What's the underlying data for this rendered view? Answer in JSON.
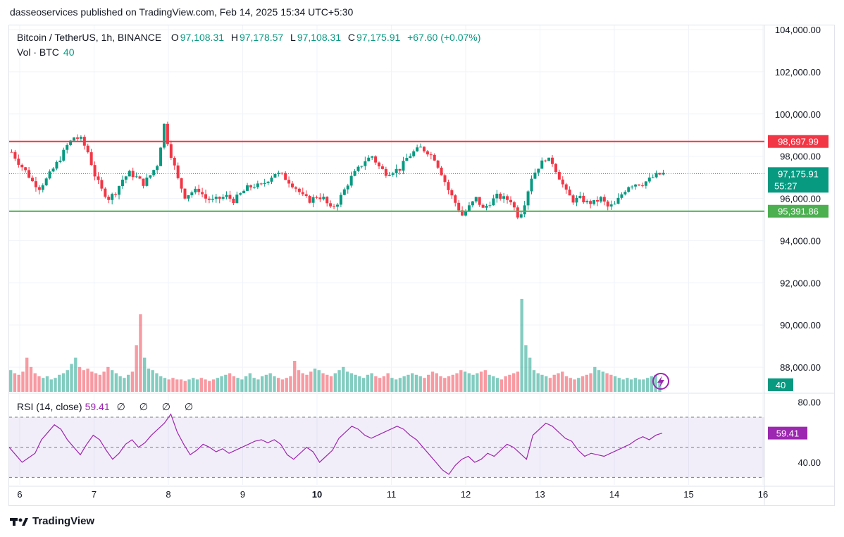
{
  "header": {
    "published": "dasseoservices published on TradingView.com, Feb 14, 2025 15:34 UTC+5:30"
  },
  "legend": {
    "symbol": "Bitcoin / TetherUS, 1h, BINANCE",
    "o_label": "O",
    "o": "97,108.31",
    "h_label": "H",
    "h": "97,178.57",
    "l_label": "L",
    "l": "97,108.31",
    "c_label": "C",
    "c": "97,175.91",
    "change": "+67.60 (+0.07%)"
  },
  "volume_legend": {
    "label": "Vol · BTC",
    "value": "40"
  },
  "rsi_legend": {
    "label": "RSI (14, close)",
    "value": "59.41",
    "nulls": "∅ ∅ ∅ ∅"
  },
  "footer": {
    "brand": "TradingView"
  },
  "colors": {
    "up": "#089981",
    "down": "#f23645",
    "resistance": "#f23645",
    "support": "#4caf50",
    "rsi": "#9c27b0",
    "grid": "#f0f3fa"
  },
  "chart_data": [
    {
      "type": "candlestick",
      "title": "Bitcoin / TetherUS, 1h, BINANCE",
      "x_ticks": [
        "6",
        "7",
        "8",
        "9",
        "10",
        "11",
        "12",
        "13",
        "14",
        "15",
        "16"
      ],
      "y_ticks": [
        "104,000.00",
        "102,000.00",
        "100,000.00",
        "98,000.00",
        "96,000.00",
        "94,000.00",
        "92,000.00",
        "90,000.00",
        "88,000.00"
      ],
      "ylim": [
        86800,
        104200
      ],
      "horizontal_lines": [
        {
          "name": "resistance",
          "value": 98697.99,
          "label": "98,697.99",
          "color": "#f23645"
        },
        {
          "name": "support",
          "value": 95391.86,
          "label": "95,391.86",
          "color": "#4caf50"
        }
      ],
      "last_price": {
        "value": 97175.91,
        "label": "97,175.91",
        "countdown": "55:27"
      },
      "close_path": [
        [
          0,
          98200
        ],
        [
          6,
          97700
        ],
        [
          12,
          97300
        ],
        [
          18,
          96800
        ],
        [
          24,
          96500
        ],
        [
          30,
          96900
        ],
        [
          36,
          97400
        ],
        [
          42,
          97900
        ],
        [
          48,
          98500
        ],
        [
          54,
          98900
        ],
        [
          60,
          98800
        ],
        [
          66,
          98200
        ],
        [
          72,
          97100
        ],
        [
          78,
          96400
        ],
        [
          84,
          96000
        ],
        [
          90,
          96300
        ],
        [
          96,
          96900
        ],
        [
          102,
          97200
        ],
        [
          108,
          97000
        ],
        [
          114,
          96700
        ],
        [
          120,
          97100
        ],
        [
          126,
          97600
        ],
        [
          130,
          98800
        ],
        [
          132,
          99500
        ],
        [
          136,
          98400
        ],
        [
          140,
          97700
        ],
        [
          144,
          96900
        ],
        [
          150,
          96100
        ],
        [
          156,
          96300
        ],
        [
          162,
          96400
        ],
        [
          168,
          96000
        ],
        [
          174,
          95900
        ],
        [
          180,
          96000
        ],
        [
          186,
          96100
        ],
        [
          192,
          95900
        ],
        [
          198,
          96200
        ],
        [
          204,
          96500
        ],
        [
          210,
          96600
        ],
        [
          216,
          96600
        ],
        [
          222,
          96900
        ],
        [
          228,
          97200
        ],
        [
          234,
          97100
        ],
        [
          240,
          96800
        ],
        [
          246,
          96500
        ],
        [
          252,
          96100
        ],
        [
          258,
          95900
        ],
        [
          264,
          96100
        ],
        [
          270,
          96000
        ],
        [
          276,
          95500
        ],
        [
          282,
          95800
        ],
        [
          288,
          96400
        ],
        [
          294,
          97000
        ],
        [
          300,
          97400
        ],
        [
          306,
          97800
        ],
        [
          312,
          98000
        ],
        [
          318,
          97500
        ],
        [
          324,
          97200
        ],
        [
          330,
          97300
        ],
        [
          336,
          97400
        ],
        [
          342,
          97900
        ],
        [
          348,
          98200
        ],
        [
          354,
          98400
        ],
        [
          360,
          98200
        ],
        [
          366,
          97900
        ],
        [
          372,
          97200
        ],
        [
          378,
          96400
        ],
        [
          384,
          95800
        ],
        [
          390,
          95200
        ],
        [
          396,
          95600
        ],
        [
          402,
          96000
        ],
        [
          408,
          95500
        ],
        [
          414,
          95800
        ],
        [
          420,
          96100
        ],
        [
          426,
          96000
        ],
        [
          432,
          95900
        ],
        [
          438,
          95200
        ],
        [
          442,
          95400
        ],
        [
          446,
          96200
        ],
        [
          450,
          97000
        ],
        [
          456,
          97500
        ],
        [
          462,
          97900
        ],
        [
          468,
          97700
        ],
        [
          474,
          97000
        ],
        [
          480,
          96300
        ],
        [
          486,
          95900
        ],
        [
          492,
          96000
        ],
        [
          498,
          95800
        ],
        [
          504,
          95800
        ],
        [
          510,
          96000
        ],
        [
          516,
          95600
        ],
        [
          522,
          95700
        ],
        [
          528,
          96200
        ],
        [
          534,
          96600
        ],
        [
          540,
          96700
        ],
        [
          546,
          96700
        ],
        [
          552,
          96900
        ],
        [
          558,
          97100
        ],
        [
          564,
          97176
        ]
      ],
      "volume": {
        "label": "Vol · BTC",
        "last": "40",
        "bars_note": "relative",
        "values": [
          14,
          12,
          11,
          13,
          22,
          16,
          12,
          10,
          9,
          10,
          8,
          9,
          11,
          12,
          14,
          18,
          22,
          16,
          14,
          15,
          13,
          12,
          11,
          13,
          16,
          14,
          12,
          10,
          9,
          11,
          13,
          30,
          50,
          22,
          15,
          14,
          12,
          10,
          9,
          8,
          9,
          8,
          8,
          7,
          8,
          9,
          8,
          9,
          8,
          7,
          8,
          9,
          10,
          11,
          12,
          10,
          9,
          8,
          10,
          12,
          9,
          8,
          10,
          11,
          12,
          10,
          9,
          8,
          9,
          10,
          20,
          14,
          12,
          11,
          13,
          15,
          14,
          12,
          11,
          10,
          12,
          14,
          16,
          13,
          12,
          11,
          10,
          9,
          11,
          12,
          10,
          9,
          10,
          12,
          9,
          8,
          9,
          10,
          11,
          12,
          11,
          10,
          9,
          11,
          13,
          12,
          10,
          9,
          10,
          11,
          12,
          14,
          13,
          12,
          11,
          12,
          13,
          14,
          11,
          10,
          9,
          8,
          10,
          11,
          12,
          13,
          60,
          30,
          22,
          14,
          12,
          11,
          10,
          9,
          11,
          12,
          13,
          10,
          9,
          8,
          9,
          10,
          11,
          12,
          16,
          14,
          13,
          12,
          11,
          10,
          9,
          8,
          9,
          8,
          9,
          8,
          8,
          9,
          10,
          11,
          6
        ]
      }
    },
    {
      "type": "line",
      "title": "RSI (14, close)",
      "y_ticks": [
        "80.00",
        "40.00"
      ],
      "ylim": [
        25,
        85
      ],
      "bands": [
        70,
        50,
        30
      ],
      "last": {
        "value": 59.41,
        "label": "59.41"
      },
      "series": [
        {
          "values": [
            50,
            45,
            40,
            43,
            46,
            55,
            60,
            65,
            62,
            55,
            50,
            45,
            52,
            58,
            55,
            48,
            42,
            46,
            52,
            55,
            50,
            53,
            58,
            62,
            66,
            72,
            60,
            52,
            45,
            48,
            52,
            50,
            47,
            49,
            46,
            48,
            50,
            52,
            54,
            55,
            53,
            55,
            52,
            45,
            42,
            46,
            50,
            47,
            40,
            44,
            48,
            56,
            60,
            64,
            62,
            58,
            56,
            58,
            60,
            62,
            64,
            62,
            58,
            55,
            50,
            45,
            40,
            35,
            32,
            38,
            42,
            44,
            40,
            42,
            46,
            44,
            48,
            52,
            50,
            46,
            42,
            58,
            62,
            66,
            64,
            60,
            56,
            54,
            48,
            44,
            46,
            45,
            44,
            46,
            48,
            50,
            52,
            55,
            57,
            55,
            58,
            59.41
          ]
        }
      ]
    }
  ]
}
